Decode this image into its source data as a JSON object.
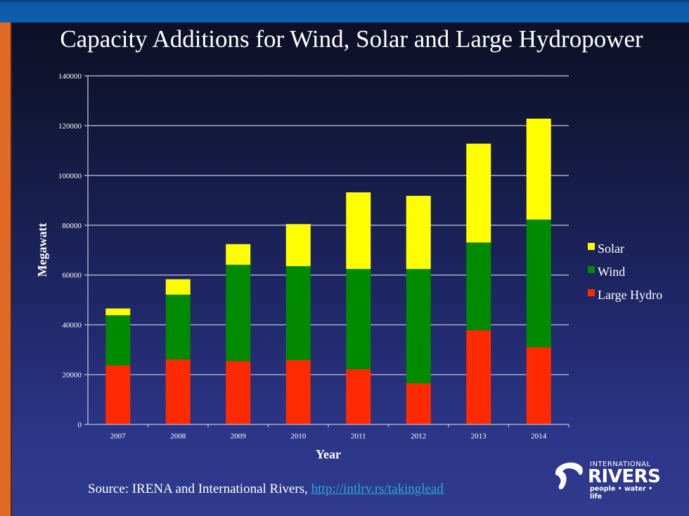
{
  "slide": {
    "title": "Capacity Additions for Wind, Solar and Large Hydropower",
    "source_prefix": "Source: IRENA and International Rivers, ",
    "source_link": "http://intlrv.rs/takinglead",
    "logo": {
      "line1": "INTERNATIONAL",
      "line2": "RIVERS",
      "tagline": "people • water • life"
    }
  },
  "chart_data": {
    "type": "bar",
    "stacked": true,
    "title": "Capacity Additions for Wind, Solar and Large Hydropower",
    "xlabel": "Year",
    "ylabel": "Megawatt",
    "categories": [
      "2007",
      "2008",
      "2009",
      "2010",
      "2011",
      "2012",
      "2013",
      "2014"
    ],
    "series": [
      {
        "name": "Large Hydro",
        "color": "#ff2a00",
        "values": [
          23750,
          26100,
          25450,
          25800,
          22150,
          16500,
          37850,
          31000
        ]
      },
      {
        "name": "Wind",
        "color": "#008a00",
        "values": [
          20100,
          26000,
          38650,
          37750,
          40250,
          45900,
          35200,
          51250
        ]
      },
      {
        "name": "Solar",
        "color": "#ffff00",
        "values": [
          2700,
          6200,
          8300,
          16900,
          30800,
          29400,
          39700,
          40550
        ]
      }
    ],
    "legend_order": [
      "Solar",
      "Wind",
      "Large Hydro"
    ],
    "legend_position": "right",
    "ylim": [
      0,
      140000
    ],
    "yticks": [
      0,
      20000,
      40000,
      60000,
      80000,
      100000,
      120000,
      140000
    ],
    "ytick_labels": [
      "0",
      "20000",
      "40000",
      "60000",
      "80000",
      "100000",
      "120000",
      "140000"
    ],
    "grid": true
  }
}
